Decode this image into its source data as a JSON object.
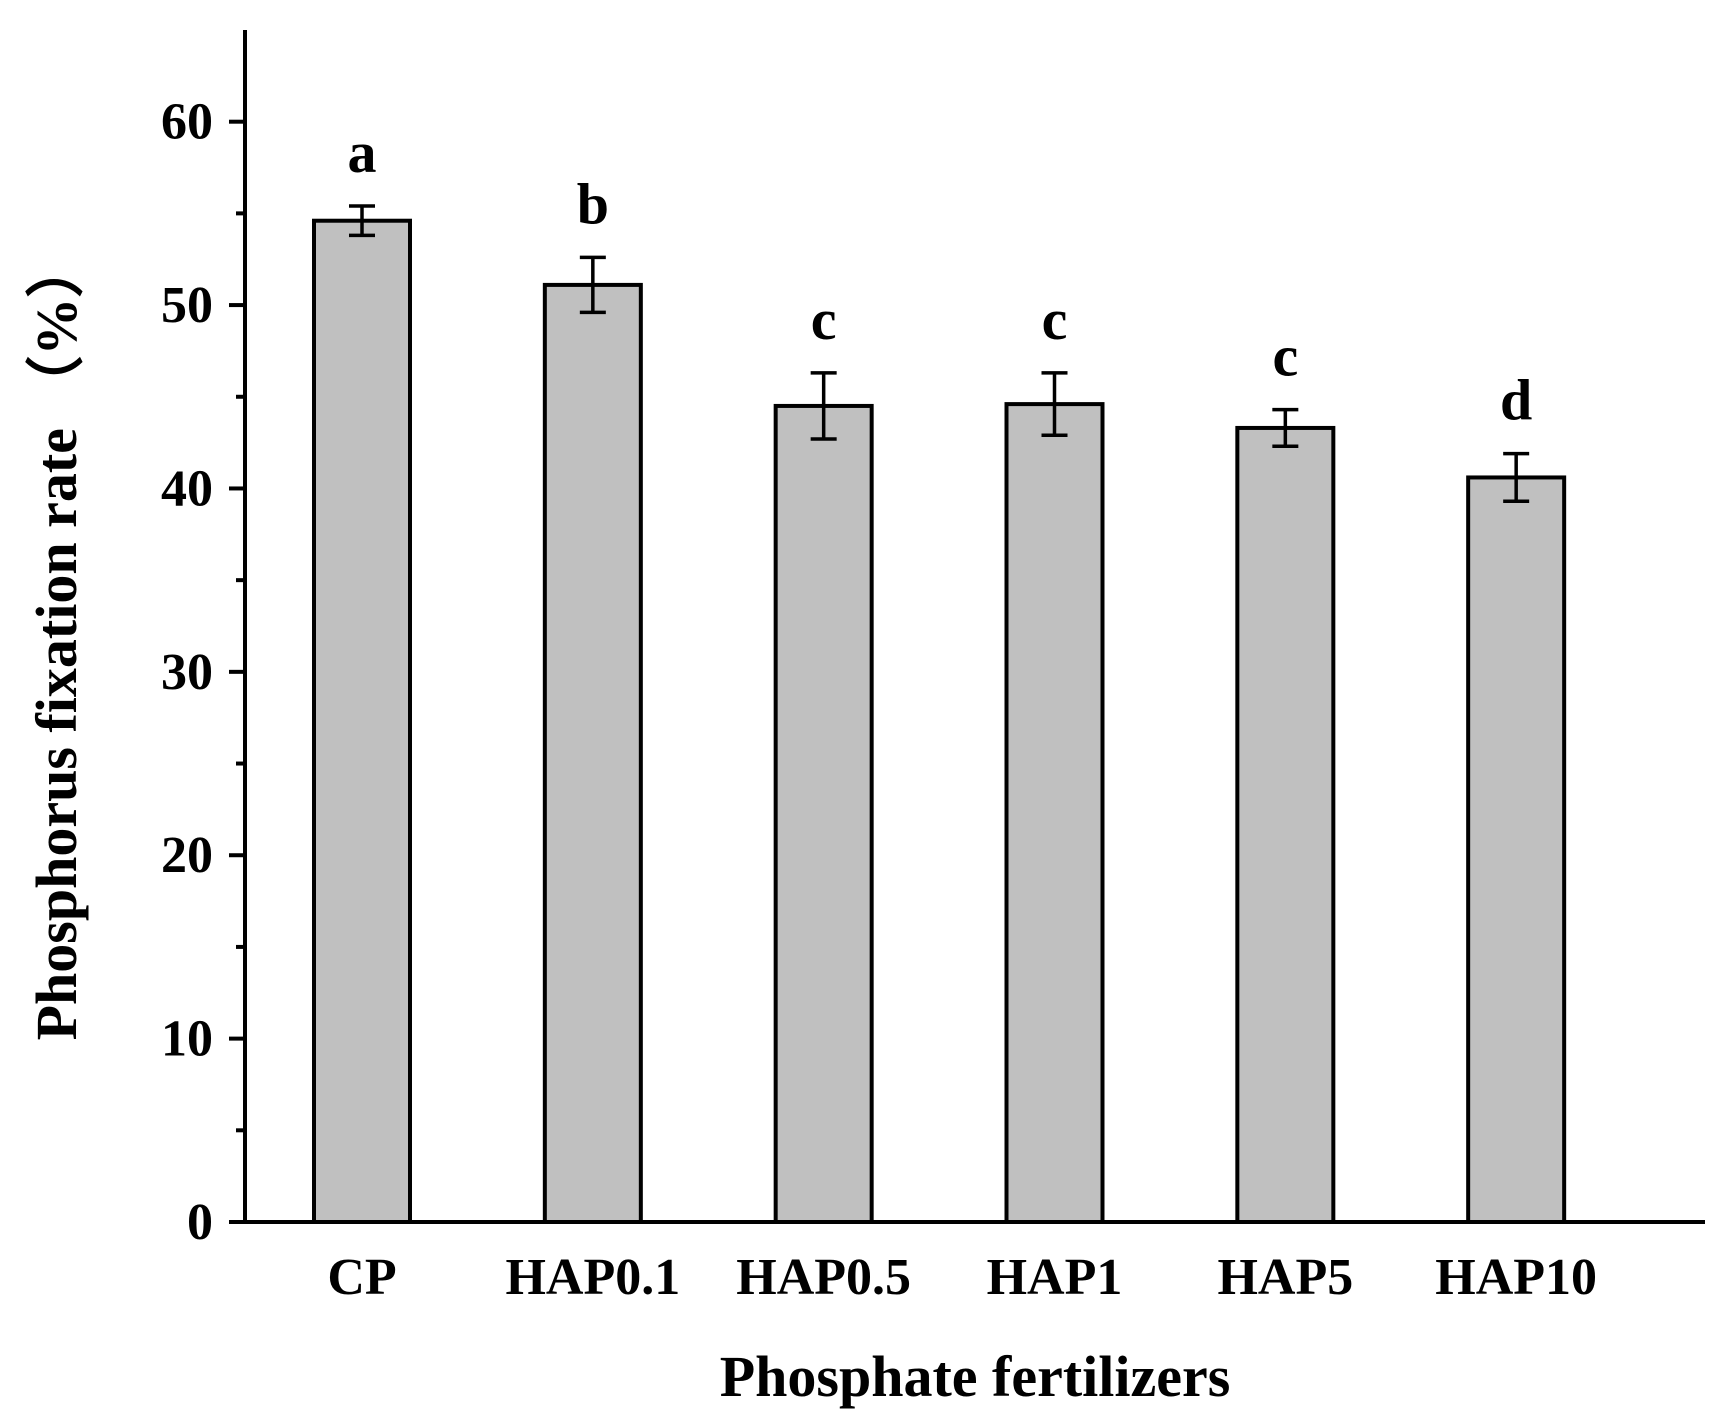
{
  "chart_data": {
    "type": "bar",
    "categories": [
      "CP",
      "HAP0.1",
      "HAP0.5",
      "HAP1",
      "HAP5",
      "HAP10"
    ],
    "values": [
      54.6,
      51.1,
      44.5,
      44.6,
      43.3,
      40.6
    ],
    "error": [
      0.8,
      1.5,
      1.8,
      1.7,
      1.0,
      1.3
    ],
    "significance": [
      "a",
      "b",
      "c",
      "c",
      "c",
      "d"
    ],
    "xlabel": "Phosphate fertilizers",
    "ylabel": "Phosphorus fixation rate （%）",
    "ylim": [
      0,
      65
    ],
    "yticks": [
      0,
      10,
      20,
      30,
      40,
      50,
      60
    ],
    "ytick_labels": [
      "0",
      "10",
      "20",
      "30",
      "40",
      "50",
      "60"
    ],
    "grid": false,
    "colors": {
      "bar_fill": "#c0c0c0",
      "bar_stroke": "#000000",
      "axis": "#000000"
    }
  }
}
